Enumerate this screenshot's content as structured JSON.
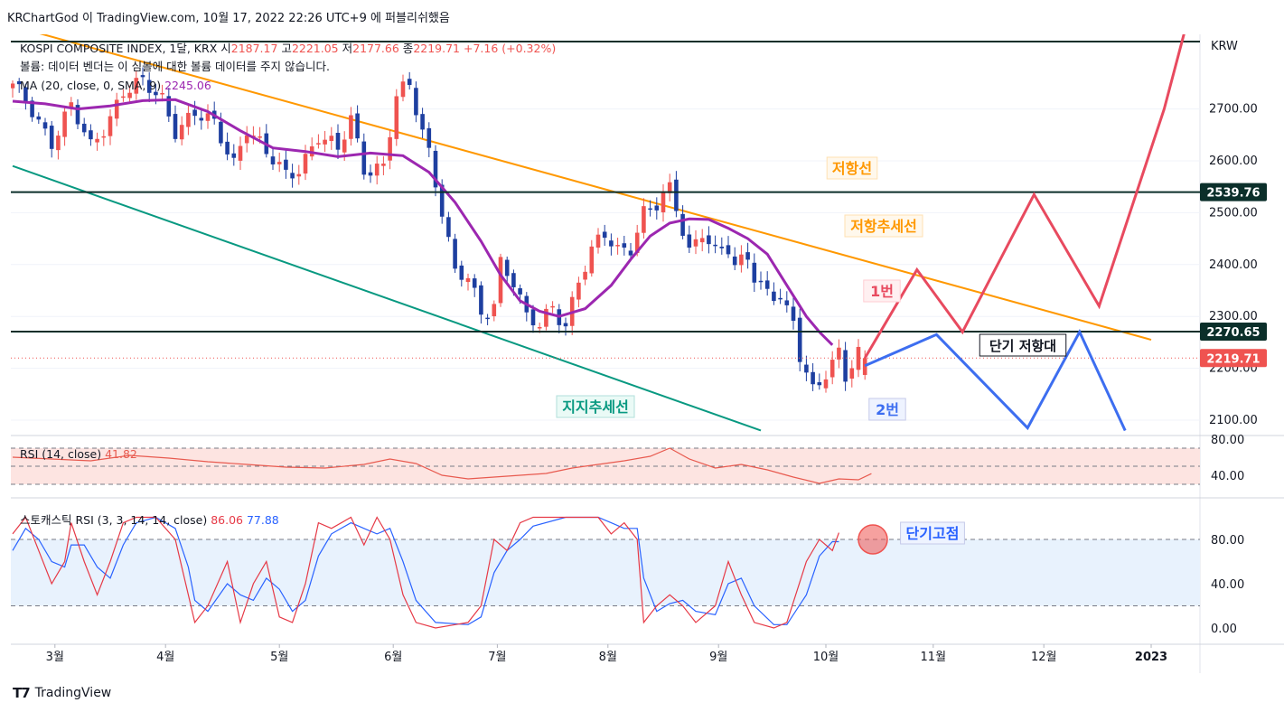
{
  "header": {
    "published": "KRChartGod 이 TradingView.com, 10월 17, 2022 22:26 UTC+9 에 퍼블리쉬했음"
  },
  "legend": {
    "symbol": "KOSPI COMPOSITE INDEX, 1달, KRX",
    "open_label": "시",
    "open": "2187.17",
    "high_label": "고",
    "high": "2221.05",
    "low_label": "저",
    "low": "2177.66",
    "close_label": "종",
    "close": "2219.71",
    "change": "+7.16 (+0.32%)",
    "volume_note": "볼륨: 데이터 벤더는 이 심볼에 대한 볼륨 데이터를 주지 않습니다.",
    "ma_label": "MA (20, close, 0, SMA, 9)",
    "ma_value": "2245.06"
  },
  "currency": "KRW",
  "branding": "TradingView",
  "colors": {
    "up": "#ef5350",
    "down": "#1e3fa0",
    "ma": "#9c27b0",
    "resistance": "#ff9800",
    "support": "#089981",
    "level": "#0b2f2a",
    "red_path": "#e84a5f",
    "blue_path": "#3d6ef0",
    "rsi": "#e85a4f",
    "stoch_k": "#e63946",
    "stoch_d": "#2962ff"
  },
  "chart_data": {
    "type": "candlestick",
    "x_labels": [
      "3월",
      "4월",
      "5월",
      "6월",
      "7월",
      "8월",
      "9월",
      "10월",
      "11월",
      "12월",
      "2023"
    ],
    "y_ticks": [
      "2100.00",
      "2200.00",
      "2300.00",
      "2400.00",
      "2500.00",
      "2600.00",
      "2700.00"
    ],
    "levels": [
      {
        "value": 2539.76,
        "label": "2539.76"
      },
      {
        "value": 2270.65,
        "label": "2270.65"
      }
    ],
    "last_price": {
      "value": 2219.71,
      "label": "2219.71"
    },
    "ohlc_path": [
      [
        0,
        2740
      ],
      [
        3,
        2700
      ],
      [
        6,
        2640
      ],
      [
        9,
        2700
      ],
      [
        12,
        2625
      ],
      [
        15,
        2690
      ],
      [
        17,
        2735
      ],
      [
        20,
        2745
      ],
      [
        23,
        2720
      ],
      [
        25,
        2665
      ],
      [
        28,
        2690
      ],
      [
        31,
        2665
      ],
      [
        34,
        2600
      ],
      [
        36,
        2670
      ],
      [
        39,
        2610
      ],
      [
        42,
        2570
      ],
      [
        44,
        2590
      ],
      [
        47,
        2650
      ],
      [
        50,
        2615
      ],
      [
        52,
        2680
      ],
      [
        54,
        2590
      ],
      [
        57,
        2590
      ],
      [
        59,
        2720
      ],
      [
        61,
        2740
      ],
      [
        62,
        2700
      ],
      [
        64,
        2620
      ],
      [
        66,
        2510
      ],
      [
        68,
        2380
      ],
      [
        70,
        2370
      ],
      [
        72,
        2300
      ],
      [
        74,
        2330
      ],
      [
        75,
        2410
      ],
      [
        77,
        2370
      ],
      [
        79,
        2290
      ],
      [
        81,
        2280
      ],
      [
        83,
        2320
      ],
      [
        85,
        2290
      ],
      [
        87,
        2370
      ],
      [
        89,
        2420
      ],
      [
        91,
        2455
      ],
      [
        93,
        2430
      ],
      [
        95,
        2440
      ],
      [
        97,
        2500
      ],
      [
        99,
        2510
      ],
      [
        101,
        2540
      ],
      [
        102,
        2510
      ],
      [
        104,
        2430
      ],
      [
        106,
        2470
      ],
      [
        108,
        2420
      ],
      [
        110,
        2425
      ],
      [
        111,
        2390
      ],
      [
        113,
        2420
      ],
      [
        114,
        2385
      ],
      [
        116,
        2350
      ],
      [
        118,
        2335
      ],
      [
        119,
        2300
      ],
      [
        120,
        2280
      ],
      [
        121,
        2220
      ],
      [
        123,
        2160
      ],
      [
        125,
        2200
      ],
      [
        127,
        2230
      ],
      [
        128,
        2180
      ],
      [
        130,
        2220
      ],
      [
        131,
        2219.71
      ]
    ],
    "ma20_path": [
      [
        0,
        2715
      ],
      [
        5,
        2710
      ],
      [
        10,
        2700
      ],
      [
        15,
        2706
      ],
      [
        20,
        2716
      ],
      [
        25,
        2718
      ],
      [
        30,
        2695
      ],
      [
        35,
        2658
      ],
      [
        40,
        2625
      ],
      [
        45,
        2618
      ],
      [
        50,
        2608
      ],
      [
        55,
        2615
      ],
      [
        60,
        2610
      ],
      [
        64,
        2578
      ],
      [
        68,
        2520
      ],
      [
        72,
        2445
      ],
      [
        75,
        2380
      ],
      [
        78,
        2330
      ],
      [
        81,
        2310
      ],
      [
        84,
        2300
      ],
      [
        88,
        2315
      ],
      [
        92,
        2360
      ],
      [
        95,
        2410
      ],
      [
        98,
        2455
      ],
      [
        101,
        2480
      ],
      [
        104,
        2488
      ],
      [
        107,
        2487
      ],
      [
        110,
        2470
      ],
      [
        113,
        2450
      ],
      [
        116,
        2420
      ],
      [
        119,
        2360
      ],
      [
        122,
        2300
      ],
      [
        124,
        2270
      ],
      [
        126,
        2245
      ]
    ],
    "ma20_last": 2245.06,
    "resistance_trendline": {
      "name": "저항추세선",
      "points": [
        [
          0,
          2860
        ],
        [
          175,
          2255
        ]
      ]
    },
    "resistance_line_label": "저항선",
    "support_trendline": {
      "name": "지지추세선",
      "points": [
        [
          0,
          2590
        ],
        [
          115,
          2080
        ]
      ]
    },
    "projection_red": {
      "name": "1번",
      "points": [
        [
          131,
          2219.71
        ],
        [
          139,
          2390
        ],
        [
          146,
          2270
        ],
        [
          157,
          2535
        ],
        [
          167,
          2320
        ],
        [
          177,
          2700
        ],
        [
          181,
          2890
        ]
      ]
    },
    "projection_blue": {
      "name": "2번",
      "points": [
        [
          131,
          2205
        ],
        [
          142,
          2265
        ],
        [
          156,
          2085
        ],
        [
          164,
          2270
        ],
        [
          171,
          2080
        ]
      ]
    },
    "zone_label": "단기 저항대",
    "rsi": {
      "label": "RSI (14, close)",
      "value": "41.82",
      "y_ticks": [
        "40.00",
        "80.00"
      ],
      "bands": [
        30,
        50,
        70
      ],
      "path": [
        [
          0,
          60
        ],
        [
          6,
          58
        ],
        [
          12,
          56
        ],
        [
          18,
          62
        ],
        [
          24,
          59
        ],
        [
          30,
          55
        ],
        [
          36,
          52
        ],
        [
          42,
          49
        ],
        [
          48,
          48
        ],
        [
          54,
          52
        ],
        [
          58,
          58
        ],
        [
          62,
          53
        ],
        [
          66,
          40
        ],
        [
          70,
          36
        ],
        [
          74,
          38
        ],
        [
          78,
          40
        ],
        [
          82,
          42
        ],
        [
          86,
          48
        ],
        [
          90,
          52
        ],
        [
          94,
          56
        ],
        [
          98,
          61
        ],
        [
          101,
          70
        ],
        [
          104,
          58
        ],
        [
          108,
          48
        ],
        [
          112,
          52
        ],
        [
          116,
          46
        ],
        [
          120,
          38
        ],
        [
          124,
          31
        ],
        [
          127,
          36
        ],
        [
          130,
          35
        ],
        [
          132,
          41.8
        ]
      ]
    },
    "stoch": {
      "label": "스토캐스틱 RSI (3, 3, 14, 14, close)",
      "k": "86.06",
      "d": "77.88",
      "y_ticks": [
        "0.00",
        "40.00",
        "80.00"
      ],
      "bands": [
        20,
        80
      ],
      "k_path": [
        [
          0,
          85
        ],
        [
          2,
          100
        ],
        [
          4,
          70
        ],
        [
          6,
          40
        ],
        [
          8,
          60
        ],
        [
          9,
          95
        ],
        [
          11,
          60
        ],
        [
          13,
          30
        ],
        [
          15,
          60
        ],
        [
          17,
          95
        ],
        [
          19,
          100
        ],
        [
          22,
          100
        ],
        [
          25,
          80
        ],
        [
          27,
          30
        ],
        [
          28,
          5
        ],
        [
          30,
          20
        ],
        [
          33,
          60
        ],
        [
          35,
          5
        ],
        [
          37,
          40
        ],
        [
          39,
          60
        ],
        [
          41,
          10
        ],
        [
          43,
          5
        ],
        [
          45,
          40
        ],
        [
          47,
          95
        ],
        [
          49,
          90
        ],
        [
          52,
          100
        ],
        [
          54,
          75
        ],
        [
          56,
          100
        ],
        [
          58,
          80
        ],
        [
          60,
          30
        ],
        [
          62,
          5
        ],
        [
          65,
          0
        ],
        [
          70,
          5
        ],
        [
          72,
          20
        ],
        [
          74,
          80
        ],
        [
          76,
          70
        ],
        [
          78,
          95
        ],
        [
          80,
          100
        ],
        [
          85,
          100
        ],
        [
          90,
          100
        ],
        [
          92,
          85
        ],
        [
          94,
          95
        ],
        [
          96,
          80
        ],
        [
          97,
          5
        ],
        [
          99,
          20
        ],
        [
          101,
          30
        ],
        [
          103,
          20
        ],
        [
          105,
          5
        ],
        [
          108,
          20
        ],
        [
          110,
          60
        ],
        [
          112,
          30
        ],
        [
          114,
          5
        ],
        [
          117,
          0
        ],
        [
          119,
          5
        ],
        [
          122,
          60
        ],
        [
          124,
          80
        ],
        [
          126,
          70
        ],
        [
          127,
          86
        ]
      ],
      "d_path": [
        [
          0,
          70
        ],
        [
          2,
          90
        ],
        [
          4,
          80
        ],
        [
          6,
          60
        ],
        [
          8,
          55
        ],
        [
          9,
          75
        ],
        [
          11,
          75
        ],
        [
          13,
          55
        ],
        [
          15,
          45
        ],
        [
          17,
          75
        ],
        [
          19,
          95
        ],
        [
          22,
          100
        ],
        [
          25,
          90
        ],
        [
          27,
          55
        ],
        [
          28,
          25
        ],
        [
          30,
          15
        ],
        [
          33,
          40
        ],
        [
          35,
          30
        ],
        [
          37,
          25
        ],
        [
          39,
          45
        ],
        [
          41,
          35
        ],
        [
          43,
          15
        ],
        [
          45,
          25
        ],
        [
          47,
          65
        ],
        [
          49,
          85
        ],
        [
          52,
          95
        ],
        [
          54,
          90
        ],
        [
          56,
          85
        ],
        [
          58,
          90
        ],
        [
          60,
          60
        ],
        [
          62,
          25
        ],
        [
          65,
          5
        ],
        [
          70,
          3
        ],
        [
          72,
          10
        ],
        [
          74,
          50
        ],
        [
          76,
          70
        ],
        [
          78,
          80
        ],
        [
          80,
          92
        ],
        [
          85,
          100
        ],
        [
          90,
          100
        ],
        [
          92,
          95
        ],
        [
          94,
          90
        ],
        [
          96,
          90
        ],
        [
          97,
          45
        ],
        [
          99,
          15
        ],
        [
          101,
          22
        ],
        [
          103,
          25
        ],
        [
          105,
          15
        ],
        [
          108,
          12
        ],
        [
          110,
          40
        ],
        [
          112,
          45
        ],
        [
          114,
          20
        ],
        [
          117,
          3
        ],
        [
          119,
          3
        ],
        [
          122,
          30
        ],
        [
          124,
          65
        ],
        [
          126,
          78
        ],
        [
          127,
          78
        ]
      ],
      "highlight_label": "단기고점"
    }
  }
}
